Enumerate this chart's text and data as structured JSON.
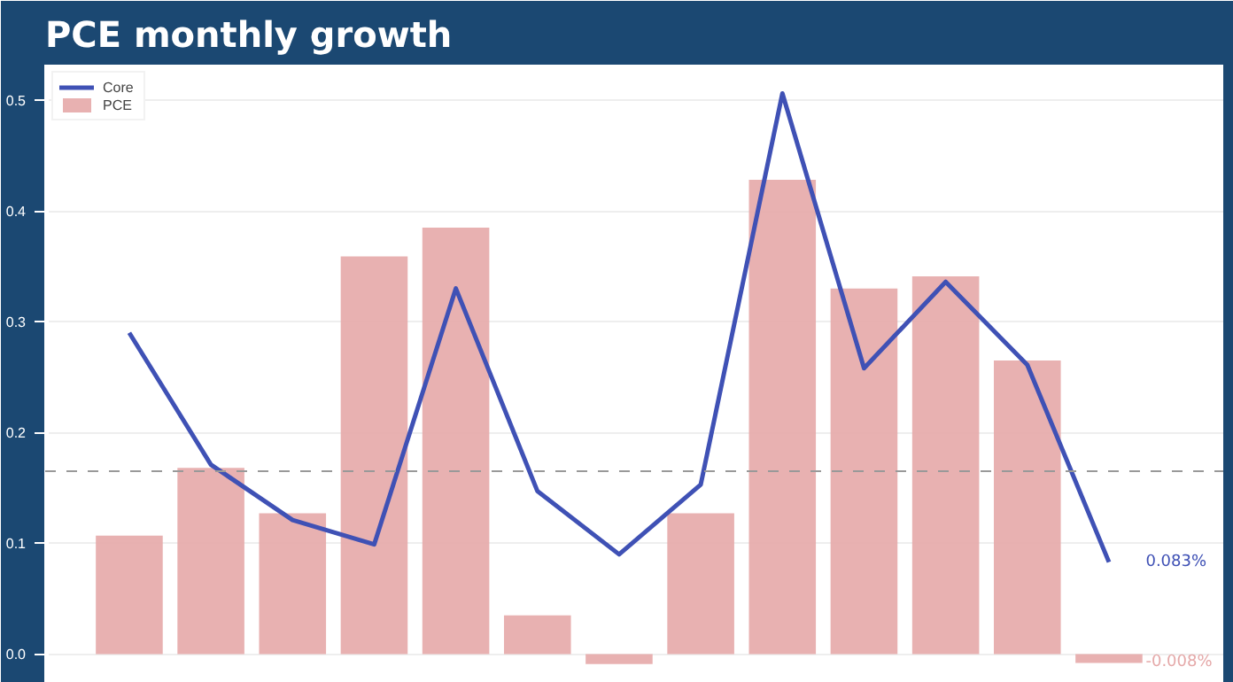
{
  "chart_data": {
    "type": "bar",
    "title": "PCE monthly growth",
    "categories": [
      null,
      null,
      null,
      null,
      null,
      null,
      null,
      null,
      null,
      null,
      null,
      null,
      null
    ],
    "series": [
      {
        "name": "Core",
        "type": "line",
        "color": "#3f51b5",
        "values": [
          0.29,
          0.171,
          0.121,
          0.099,
          0.33,
          0.147,
          0.09,
          0.153,
          0.506,
          0.258,
          0.336,
          0.261,
          0.083
        ]
      },
      {
        "name": "PCE",
        "color": "#e5a9a9",
        "values": [
          0.107,
          0.168,
          0.127,
          0.359,
          0.385,
          0.035,
          -0.009,
          0.127,
          0.428,
          0.33,
          0.341,
          0.265,
          -0.008
        ]
      }
    ],
    "annotations": [
      "0.083%",
      "-0.008%"
    ],
    "ref_lines": [
      {
        "axis": "y",
        "value": 0.165,
        "color": "#999999",
        "line_style": "dashed"
      }
    ],
    "ylim": [
      -0.026,
      0.532
    ],
    "yticks": [
      {
        "value": 0.0,
        "label": "0.0"
      },
      {
        "value": 0.1,
        "label": "0.1"
      },
      {
        "value": 0.2,
        "label": "0.2"
      },
      {
        "value": 0.3,
        "label": "0.3"
      },
      {
        "value": 0.4,
        "label": "0.4"
      },
      {
        "value": 0.5,
        "label": "0.5"
      }
    ],
    "tick_labels": "y",
    "grid": "y",
    "legend": "top left",
    "line_style": "solid",
    "marker": "none"
  }
}
